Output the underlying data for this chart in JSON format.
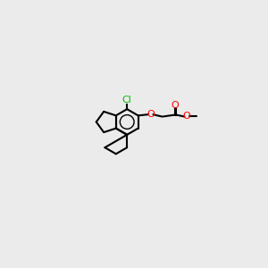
{
  "bg_color": "#ebebeb",
  "bond_color": "#000000",
  "oxygen_color": "#ff0000",
  "chlorine_color": "#00bb00",
  "figsize": [
    3.0,
    3.0
  ],
  "dpi": 100,
  "atoms": {
    "Cl_label": "Cl",
    "O_label": "O",
    "C_carbonyl": "O"
  }
}
